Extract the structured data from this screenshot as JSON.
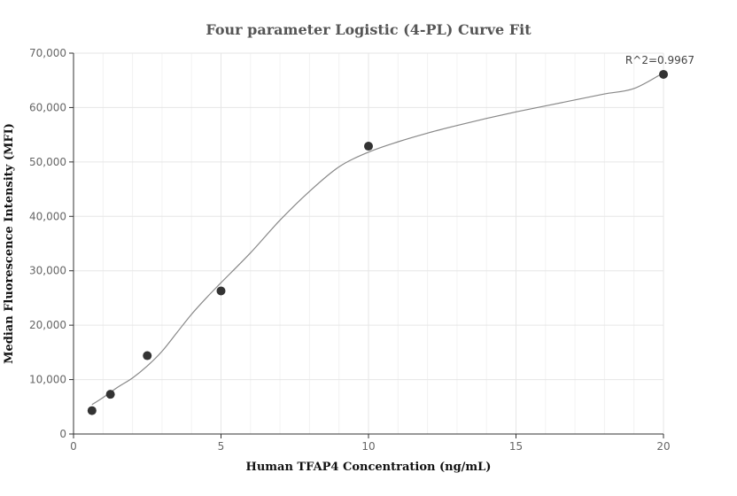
{
  "chart_data": {
    "type": "scatter",
    "title": "Four parameter Logistic (4-PL) Curve Fit",
    "xlabel": "Human TFAP4 Concentration (ng/mL)",
    "ylabel": "Median Fluorescence Intensity (MFI)",
    "xlim": [
      0,
      20
    ],
    "ylim": [
      0,
      70000
    ],
    "x_ticks": [
      0,
      5,
      10,
      15,
      20
    ],
    "x_tick_labels": [
      "0",
      "5",
      "10",
      "15",
      "20"
    ],
    "y_ticks": [
      0,
      10000,
      20000,
      30000,
      40000,
      50000,
      60000,
      70000
    ],
    "y_tick_labels": [
      "0",
      "10,000",
      "20,000",
      "30,000",
      "40,000",
      "50,000",
      "60,000",
      "70,000"
    ],
    "grid": true,
    "series": [
      {
        "kind": "points",
        "x": [
          0.625,
          1.25,
          2.5,
          5,
          10,
          20
        ],
        "y": [
          4300,
          7300,
          14400,
          26300,
          52900,
          66100
        ]
      },
      {
        "kind": "fit-curve",
        "x": [
          0.625,
          1,
          1.5,
          2,
          2.5,
          3,
          3.5,
          4,
          4.5,
          5,
          6,
          7,
          8,
          9,
          10,
          11,
          12,
          13,
          14,
          15,
          16,
          17,
          18,
          19,
          20
        ],
        "y": [
          5400,
          6700,
          8600,
          10300,
          12500,
          15200,
          18600,
          22000,
          25000,
          27800,
          33300,
          39300,
          44600,
          49100,
          51800,
          53700,
          55300,
          56700,
          58000,
          59200,
          60300,
          61400,
          62500,
          63500,
          66400
        ]
      }
    ],
    "annotation": {
      "text": "R^2=0.9967",
      "x": 20,
      "y": 66100
    }
  }
}
